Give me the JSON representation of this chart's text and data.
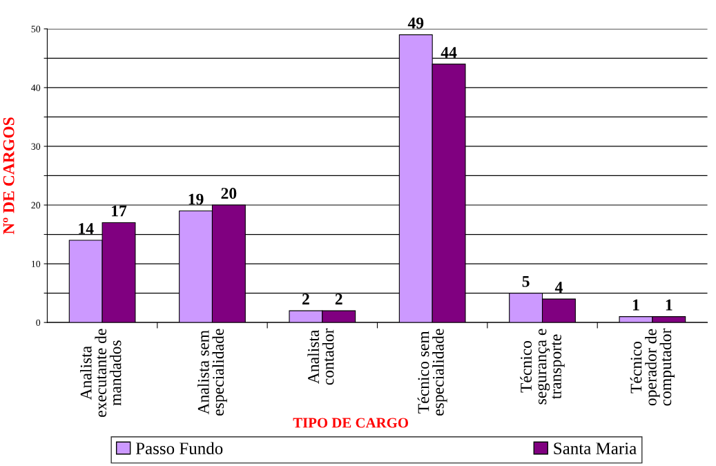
{
  "chart_data": {
    "type": "bar",
    "xlabel": "TIPO DE CARGO",
    "ylabel": "Nº DE CARGOS",
    "categories": [
      "Analista\nexecutante de\nmandados",
      "Analista sem\nespecialidade",
      "Analista\ncontador",
      "Técnico sem\nespecialidade",
      "Técnico\nsegurança e\ntransporte",
      "Técnico\noperador de\ncomputador"
    ],
    "series": [
      {
        "name": "Passo Fundo",
        "color": "#cc99ff",
        "values": [
          14,
          19,
          2,
          49,
          5,
          1
        ]
      },
      {
        "name": "Santa Maria",
        "color": "#800080",
        "values": [
          17,
          20,
          2,
          44,
          4,
          1
        ]
      }
    ],
    "ylim": [
      0,
      50
    ],
    "yticks": [
      0,
      {
        "value": 5,
        "label": null
      },
      10,
      {
        "value": 15,
        "label": null
      },
      20,
      {
        "value": 25,
        "label": null
      },
      30,
      {
        "value": 35,
        "label": null
      },
      40,
      {
        "value": 45,
        "label": null
      },
      50
    ],
    "grid": "y",
    "legend": "bottom",
    "data_labels": true
  }
}
